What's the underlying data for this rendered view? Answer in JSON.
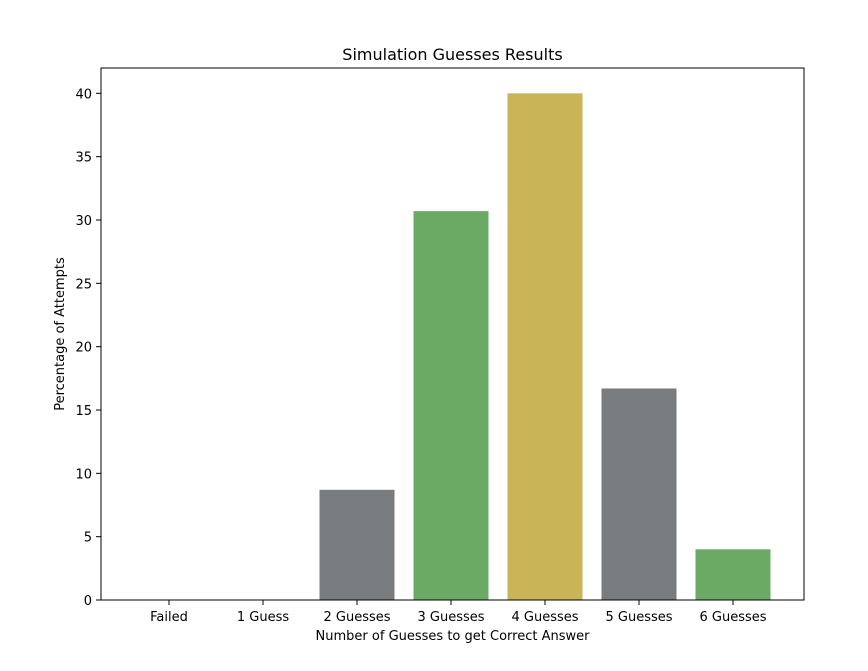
{
  "chart_data": {
    "type": "bar",
    "title": "Simulation Guesses Results",
    "xlabel": "Number of Guesses to get Correct Answer",
    "ylabel": "Percentage of Attempts",
    "categories": [
      "Failed",
      "1 Guess",
      "2 Guesses",
      "3 Guesses",
      "4 Guesses",
      "5 Guesses",
      "6 Guesses"
    ],
    "values": [
      0,
      0,
      8.7,
      30.7,
      40.0,
      16.7,
      4.0
    ],
    "bar_colors": [
      "#787c7e",
      "#787c7e",
      "#787c7e",
      "#6aaa64",
      "#c9b458",
      "#787c7e",
      "#6aaa64"
    ],
    "ylim": [
      0,
      42
    ],
    "yticks": [
      0,
      5,
      10,
      15,
      20,
      25,
      30,
      35,
      40
    ],
    "grid": false,
    "legend": "none"
  }
}
